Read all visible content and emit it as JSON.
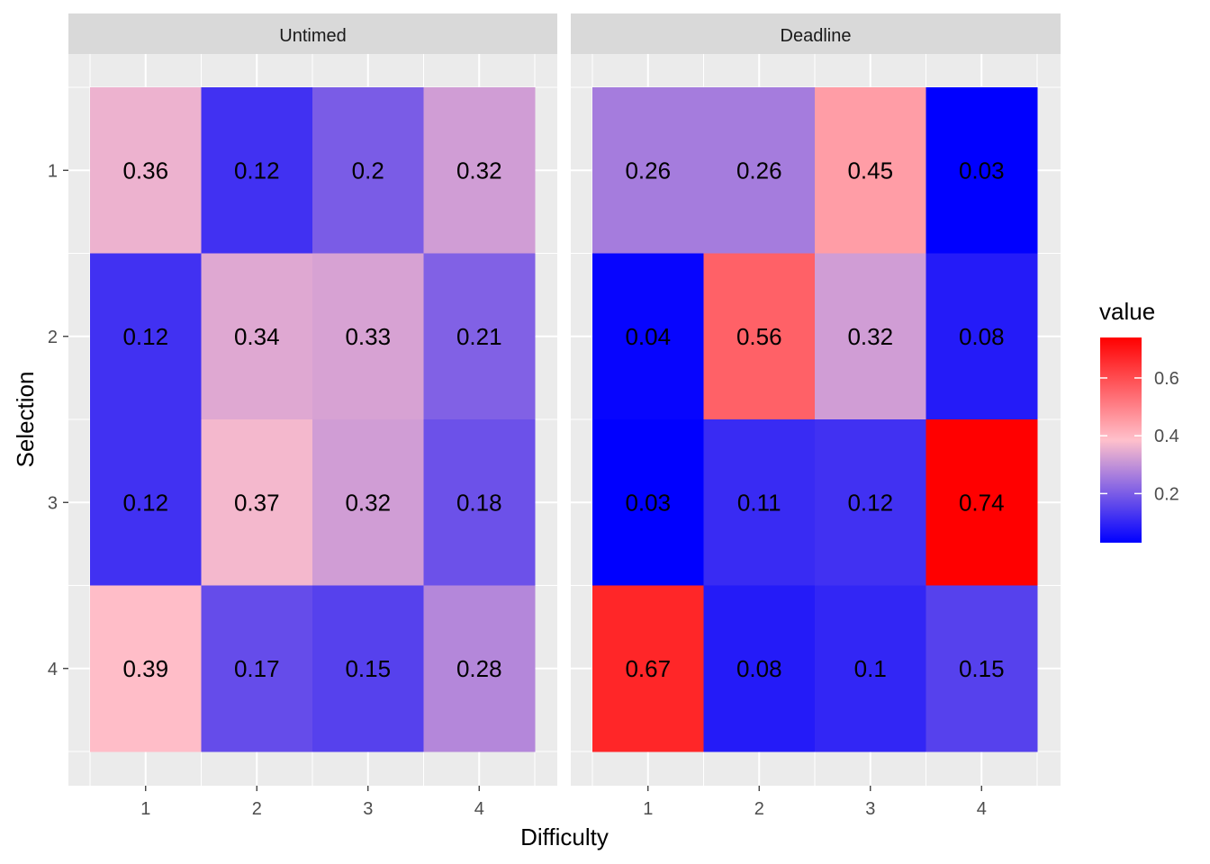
{
  "chart_data": {
    "type": "heatmap",
    "xlabel": "Difficulty",
    "ylabel": "Selection",
    "x_categories": [
      "1",
      "2",
      "3",
      "4"
    ],
    "y_categories": [
      "1",
      "2",
      "3",
      "4"
    ],
    "panels": [
      {
        "name": "Untimed",
        "values": [
          [
            0.36,
            0.12,
            0.2,
            0.32
          ],
          [
            0.12,
            0.34,
            0.33,
            0.21
          ],
          [
            0.12,
            0.37,
            0.32,
            0.18
          ],
          [
            0.39,
            0.17,
            0.15,
            0.28
          ]
        ]
      },
      {
        "name": "Deadline",
        "values": [
          [
            0.26,
            0.26,
            0.45,
            0.03
          ],
          [
            0.04,
            0.56,
            0.32,
            0.08
          ],
          [
            0.03,
            0.11,
            0.12,
            0.74
          ],
          [
            0.67,
            0.08,
            0.1,
            0.15
          ]
        ]
      }
    ],
    "legend": {
      "title": "value",
      "ticks": [
        0.2,
        0.4,
        0.6
      ],
      "tick_labels": [
        "0.2",
        "0.4",
        "0.6"
      ],
      "range": [
        0.03,
        0.74
      ],
      "low_color": "#0000ff",
      "mid_color": "#ffc0cb",
      "high_color": "#ff0000",
      "placement": "right"
    },
    "panel_background": "#ebebeb",
    "strip_background": "#d9d9d9",
    "grid": true
  }
}
